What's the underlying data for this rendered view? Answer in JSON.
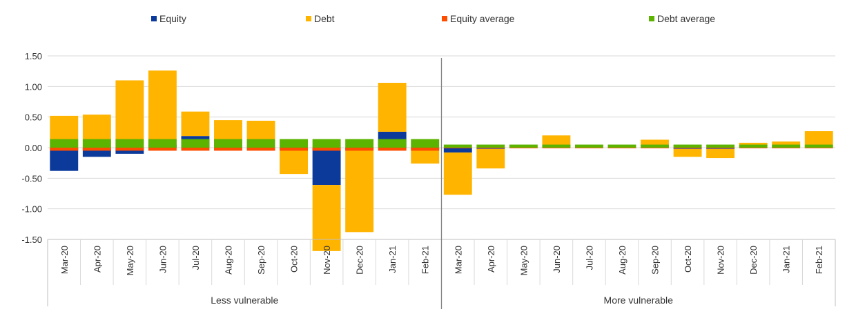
{
  "chart_data": {
    "type": "bar",
    "stacked": true,
    "legend": [
      {
        "name": "Equity",
        "color": "#0b3a9b"
      },
      {
        "name": "Debt",
        "color": "#ffb400"
      },
      {
        "name": "Equity average",
        "color": "#ff4d00"
      },
      {
        "name": "Debt average",
        "color": "#5cb300"
      }
    ],
    "y_ticks": [
      "1.50",
      "1.00",
      "0.50",
      "0.00",
      "-0.50",
      "-1.00",
      "-1.50"
    ],
    "ylim": [
      -1.5,
      1.5
    ],
    "groups": [
      {
        "name": "Less vulnerable",
        "categories": [
          "Mar-20",
          "Apr-20",
          "May-20",
          "Jun-20",
          "Jul-20",
          "Aug-20",
          "Sep-20",
          "Oct-20",
          "Nov-20",
          "Dec-20",
          "Jan-21",
          "Feb-21"
        ],
        "equity": [
          -0.38,
          -0.15,
          -0.1,
          0.05,
          0.19,
          0.03,
          0.02,
          -0.03,
          -0.61,
          -0.03,
          0.26,
          -0.02
        ],
        "debt": [
          0.52,
          0.54,
          1.1,
          1.21,
          0.4,
          0.42,
          0.42,
          -0.4,
          -1.08,
          -1.35,
          0.8,
          -0.24
        ],
        "equity_average": -0.05,
        "debt_average": 0.14
      },
      {
        "name": "More vulnerable",
        "categories": [
          "Mar-20",
          "Apr-20",
          "May-20",
          "Jun-20",
          "Jul-20",
          "Aug-20",
          "Sep-20",
          "Oct-20",
          "Nov-20",
          "Dec-20",
          "Jan-21",
          "Feb-21"
        ],
        "equity": [
          -0.08,
          -0.02,
          0.0,
          0.0,
          0.0,
          0.0,
          0.0,
          -0.02,
          -0.02,
          0.0,
          0.0,
          0.0
        ],
        "debt": [
          -0.69,
          -0.32,
          0.02,
          0.2,
          0.02,
          0.02,
          0.13,
          -0.13,
          -0.15,
          0.08,
          0.1,
          0.27
        ],
        "equity_average": -0.01,
        "debt_average": 0.05
      }
    ]
  }
}
